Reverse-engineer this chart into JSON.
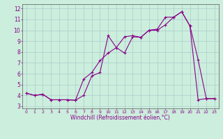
{
  "xlabel": "Windchill (Refroidissement éolien,°C)",
  "line1_x": [
    0,
    1,
    2,
    3,
    4,
    5,
    6,
    7,
    8,
    9,
    10,
    11,
    12,
    13,
    14,
    15,
    16,
    17,
    18,
    19,
    20,
    21,
    22,
    23
  ],
  "line1_y": [
    4.2,
    4.0,
    4.1,
    3.6,
    3.6,
    3.6,
    3.55,
    4.0,
    5.8,
    6.1,
    9.5,
    8.4,
    7.9,
    9.4,
    9.35,
    10.0,
    10.0,
    10.5,
    11.2,
    11.7,
    10.4,
    3.6,
    3.7,
    3.7
  ],
  "line2_x": [
    0,
    1,
    2,
    3,
    4,
    5,
    6,
    7,
    8,
    9,
    10,
    11,
    12,
    13,
    14,
    15,
    16,
    17,
    18,
    19,
    20,
    21,
    22,
    23
  ],
  "line2_y": [
    4.2,
    4.0,
    4.1,
    3.6,
    3.6,
    3.6,
    3.55,
    5.5,
    6.1,
    7.2,
    7.9,
    8.4,
    9.4,
    9.5,
    9.35,
    10.0,
    10.1,
    11.2,
    11.2,
    11.7,
    10.4,
    7.3,
    3.7,
    3.7
  ],
  "color": "#880088",
  "bg_color": "#cceedd",
  "grid_color": "#aacccc",
  "xlim": [
    -0.5,
    23.5
  ],
  "ylim": [
    2.8,
    12.4
  ],
  "yticks": [
    3,
    4,
    5,
    6,
    7,
    8,
    9,
    10,
    11,
    12
  ],
  "xticks": [
    0,
    1,
    2,
    3,
    4,
    5,
    6,
    7,
    8,
    9,
    10,
    11,
    12,
    13,
    14,
    15,
    16,
    17,
    18,
    19,
    20,
    21,
    22,
    23
  ]
}
